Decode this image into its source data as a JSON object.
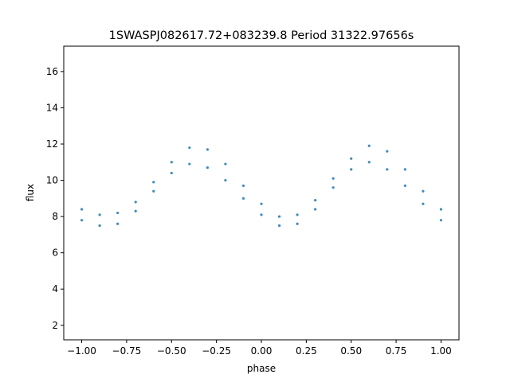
{
  "chart_data": {
    "type": "scatter",
    "title": "1SWASPJ082617.72+083239.8 Period 31322.97656s",
    "xlabel": "phase",
    "ylabel": "flux",
    "xlim": [
      -1.1,
      1.1
    ],
    "ylim": [
      1.2,
      17.4
    ],
    "xticks": [
      -1.0,
      -0.75,
      -0.5,
      -0.25,
      0.0,
      0.25,
      0.5,
      0.75,
      1.0
    ],
    "xtick_labels": [
      "−1.00",
      "−0.75",
      "−0.50",
      "−0.25",
      "0.00",
      "0.25",
      "0.50",
      "0.75",
      "1.00"
    ],
    "yticks": [
      2,
      4,
      6,
      8,
      10,
      12,
      14,
      16
    ],
    "ytick_labels": [
      "2",
      "4",
      "6",
      "8",
      "10",
      "12",
      "14",
      "16"
    ],
    "grid": false,
    "legend": "none",
    "point_color": "#1f77b4",
    "series": [
      {
        "x": [
          -1.0,
          -0.9,
          -0.8,
          -0.7,
          -0.6,
          -0.5,
          -0.4,
          -0.3,
          -0.2,
          -0.1,
          0.0,
          0.1,
          0.2,
          0.3,
          0.4,
          0.5,
          0.6,
          0.7,
          0.8,
          0.9,
          1.0
        ],
        "y": [
          8.4,
          8.1,
          8.2,
          8.8,
          9.9,
          11.0,
          11.8,
          11.7,
          10.9,
          9.7,
          8.7,
          8.0,
          8.1,
          8.9,
          10.1,
          11.2,
          11.9,
          11.6,
          10.6,
          9.4,
          8.4
        ]
      },
      {
        "x": [
          -1.0,
          -0.9,
          -0.8,
          -0.7,
          -0.6,
          -0.5,
          -0.4,
          -0.3,
          -0.2,
          -0.1,
          0.0,
          0.1,
          0.2,
          0.3,
          0.4,
          0.5,
          0.6,
          0.7,
          0.8,
          0.9,
          1.0
        ],
        "y": [
          7.8,
          7.5,
          7.6,
          8.3,
          9.4,
          10.4,
          10.9,
          10.7,
          10.0,
          9.0,
          8.1,
          7.5,
          7.6,
          8.4,
          9.6,
          10.6,
          11.0,
          10.6,
          9.7,
          8.7,
          7.8
        ]
      }
    ]
  }
}
